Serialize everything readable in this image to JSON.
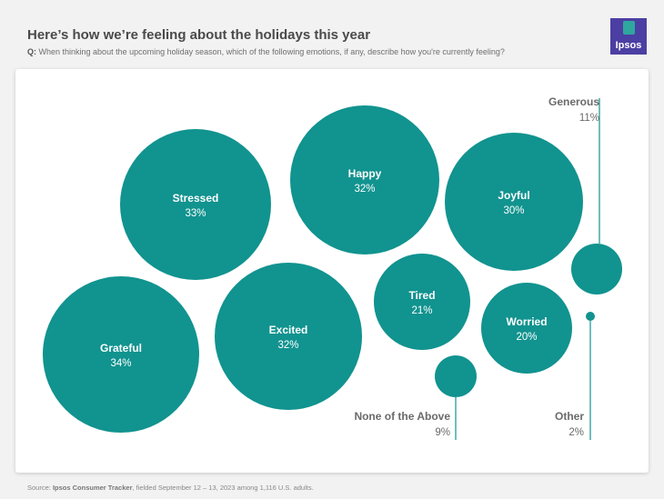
{
  "header": {
    "title": "Here’s how we’re feeling about the holidays this year",
    "question_prefix": "Q:",
    "question": "When thinking about the upcoming holiday season, which of the following emotions, if any, describe how you're currently feeling?",
    "logo_text": "Ipsos"
  },
  "colors": {
    "bubble": "#11938f",
    "leader": "#11938f",
    "logo_bg": "#4b3fa3",
    "logo_accent": "#2fa79f"
  },
  "chart_data": {
    "type": "bubble",
    "title": "Here’s how we’re feeling about the holidays this year",
    "series": [
      {
        "label": "Stressed",
        "value": 33,
        "display": "33%"
      },
      {
        "label": "Happy",
        "value": 32,
        "display": "32%"
      },
      {
        "label": "Joyful",
        "value": 30,
        "display": "30%"
      },
      {
        "label": "Generous",
        "value": 11,
        "display": "11%"
      },
      {
        "label": "Grateful",
        "value": 34,
        "display": "34%"
      },
      {
        "label": "Excited",
        "value": 32,
        "display": "32%"
      },
      {
        "label": "Tired",
        "value": 21,
        "display": "21%"
      },
      {
        "label": "Worried",
        "value": 20,
        "display": "20%"
      },
      {
        "label": "None of the Above",
        "value": 9,
        "display": "9%"
      },
      {
        "label": "Other",
        "value": 2,
        "display": "2%"
      }
    ]
  },
  "footer": {
    "source_prefix": "Source:",
    "source_bold": "Ipsos Consumer Tracker",
    "source_rest": ", fielded September 12 – 13, 2023 among 1,116 U.S. adults."
  }
}
